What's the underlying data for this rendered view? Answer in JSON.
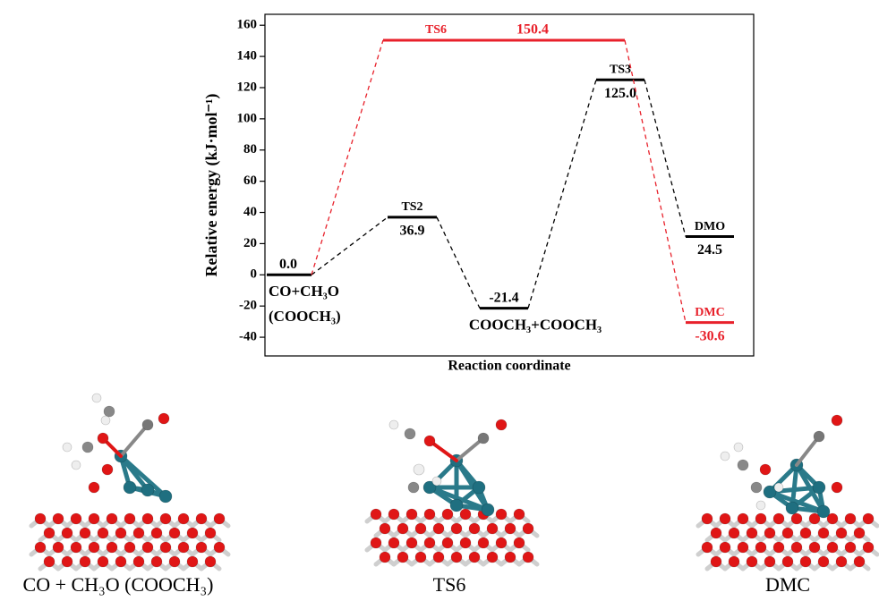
{
  "chart_data": {
    "type": "energy-diagram",
    "ylabel": "Relative energy (kJ·mol⁻¹)",
    "xlabel": "Reaction coordinate",
    "ylim": [
      -52,
      167
    ],
    "yticks": [
      -40,
      -20,
      0,
      20,
      40,
      60,
      80,
      100,
      120,
      140,
      160
    ],
    "series": [
      {
        "color": "#000000",
        "states": [
          {
            "label": [
              "CO+CH₃O",
              "(COOCH₃)"
            ],
            "value": 0,
            "value_label": "0.0"
          },
          {
            "label": "TS2",
            "value": 36.9
          },
          {
            "label": "COOCH₃+COOCH₃",
            "value": -21.4
          },
          {
            "label": "TS3",
            "value": 125,
            "value_label": "125.0"
          },
          {
            "label": "DMO",
            "value": 24.5
          }
        ]
      },
      {
        "color": "#e8212b",
        "states": [
          {
            "label": "TS6",
            "value": 150.4
          },
          {
            "label": "DMC",
            "value": -30.6
          }
        ]
      }
    ]
  },
  "figures": [
    {
      "caption": "CO + CH₃O (COOCH₃)"
    },
    {
      "caption": "TS6"
    },
    {
      "caption": "DMC"
    }
  ]
}
